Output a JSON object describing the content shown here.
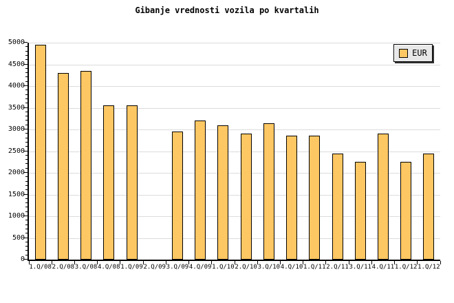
{
  "page": {
    "background": "#FFFFFF"
  },
  "chart_data": {
    "type": "bar",
    "title": "Gibanje vrednosti vozila po kvartalih",
    "xlabel": "",
    "ylabel": "",
    "categories": [
      "1.Q/08",
      "2.Q/08",
      "3.Q/08",
      "4.Q/08",
      "1.Q/09",
      "2.Q/09",
      "3.Q/09",
      "4.Q/09",
      "1.Q/10",
      "2.Q/10",
      "3.Q/10",
      "4.Q/10",
      "1.Q/11",
      "2.Q/11",
      "3.Q/11",
      "4.Q/11",
      "1.Q/12",
      "1.Q/12"
    ],
    "values": [
      4950,
      4300,
      4350,
      3550,
      3550,
      null,
      2950,
      3200,
      3100,
      2900,
      3150,
      2850,
      2850,
      2450,
      2250,
      2900,
      2250,
      2450
    ],
    "ylim": [
      0,
      5000
    ],
    "ytick_major": 500,
    "ytick_minor": 100,
    "grid": "horizontal-major",
    "legend": {
      "label": "EUR",
      "position": "top-right"
    },
    "colors": {
      "bar_fill": "#FDC763",
      "bar_border": "#000000",
      "grid_line": "#DBDBDB",
      "axis": "#000000",
      "legend_bg": "#E8E8E8",
      "text": "#000000"
    }
  }
}
